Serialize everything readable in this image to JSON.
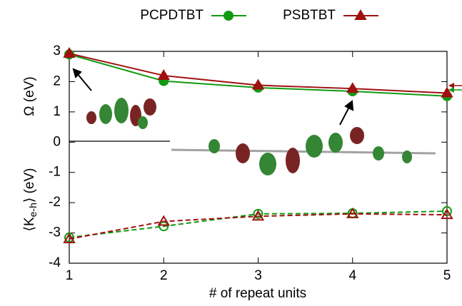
{
  "chart_data": {
    "type": "line",
    "x_label": "# of repeat units",
    "y_label_top": "Ω (eV)",
    "y_label_bottom": {
      "open": "⟨K",
      "sub": "e-h",
      "close": "⟩ (eV)"
    },
    "x": [
      1,
      2,
      3,
      4,
      5
    ],
    "xlim": [
      1,
      5
    ],
    "xticks": [
      1,
      2,
      3,
      4,
      5
    ],
    "ylim": [
      -4,
      3
    ],
    "yticks": [
      -4,
      -3,
      -2,
      -1,
      0,
      1,
      2,
      3
    ],
    "series": [
      {
        "name": "PCPDTBT",
        "color": "#129a12",
        "marker": "circle",
        "values": [
          2.9,
          2.02,
          1.8,
          1.68,
          1.52
        ],
        "ke_values": [
          -3.15,
          -2.78,
          -2.37,
          -2.35,
          -2.28
        ]
      },
      {
        "name": "PSBTBT",
        "color": "#a01010",
        "marker": "triangle",
        "values": [
          2.93,
          2.2,
          1.88,
          1.77,
          1.62
        ],
        "ke_values": [
          -3.2,
          -2.62,
          -2.45,
          -2.37,
          -2.4
        ]
      }
    ]
  }
}
